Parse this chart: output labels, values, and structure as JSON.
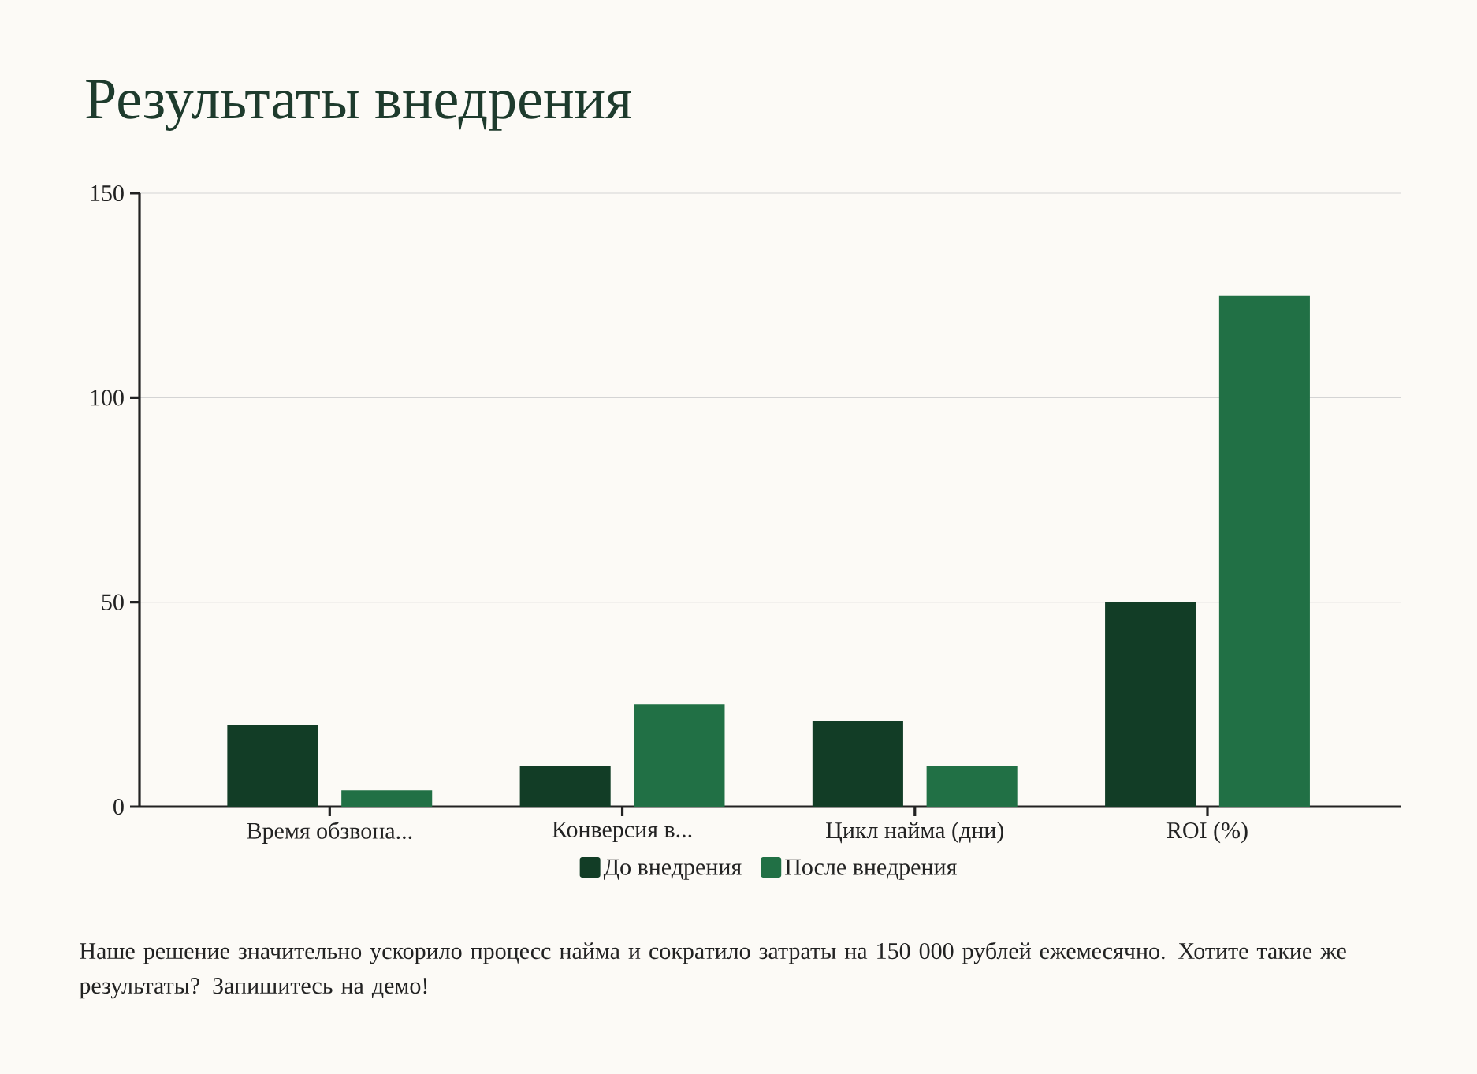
{
  "chart_data": {
    "type": "bar",
    "title": "Результаты внедрения",
    "categories": [
      "Время обзвона...",
      "Конверсия в...",
      "Цикл найма (дни)",
      "ROI (%)"
    ],
    "series": [
      {
        "name": "До внедрения",
        "color": "#123d26",
        "values": [
          20,
          10,
          21,
          50
        ]
      },
      {
        "name": "После внедрения",
        "color": "#217045",
        "values": [
          4,
          25,
          10,
          125
        ]
      }
    ],
    "ylim": [
      0,
      150
    ],
    "yticks": [
      0,
      50,
      100,
      150
    ],
    "grid": "y",
    "legend": "bottom",
    "annotations": [
      "Наше решение значительно ускорило процесс найма и сократило затраты на 150 000 рублей ежемесячно. Хотите такие же результаты? Запишитесь на демо!"
    ]
  }
}
